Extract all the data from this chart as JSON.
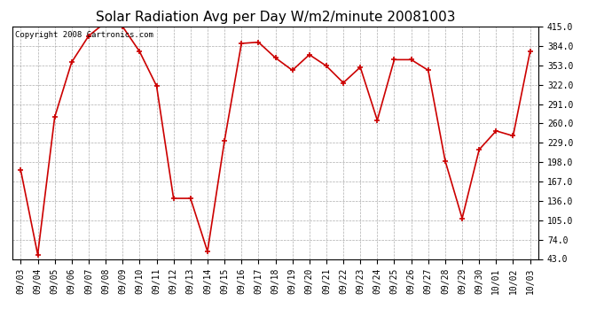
{
  "title": "Solar Radiation Avg per Day W/m2/minute 20081003",
  "copyright": "Copyright 2008 Cartronics.com",
  "dates": [
    "09/03",
    "09/04",
    "09/05",
    "09/06",
    "09/07",
    "09/08",
    "09/09",
    "09/10",
    "09/11",
    "09/12",
    "09/13",
    "09/14",
    "09/15",
    "09/16",
    "09/17",
    "09/18",
    "09/19",
    "09/20",
    "09/21",
    "09/22",
    "09/23",
    "09/24",
    "09/25",
    "09/26",
    "09/27",
    "09/28",
    "09/29",
    "09/30",
    "10/01",
    "10/02",
    "10/03"
  ],
  "values": [
    185,
    50,
    270,
    358,
    400,
    422,
    415,
    375,
    320,
    140,
    140,
    55,
    232,
    388,
    390,
    365,
    345,
    370,
    352,
    325,
    350,
    265,
    362,
    362,
    345,
    200,
    108,
    218,
    248,
    240,
    375
  ],
  "line_color": "#cc0000",
  "marker_color": "#cc0000",
  "background_color": "#ffffff",
  "grid_color": "#999999",
  "ylim": [
    43.0,
    415.0
  ],
  "yticks": [
    43.0,
    74.0,
    105.0,
    136.0,
    167.0,
    198.0,
    229.0,
    260.0,
    291.0,
    322.0,
    353.0,
    384.0,
    415.0
  ],
  "title_fontsize": 11,
  "tick_fontsize": 7,
  "copyright_fontsize": 6.5
}
